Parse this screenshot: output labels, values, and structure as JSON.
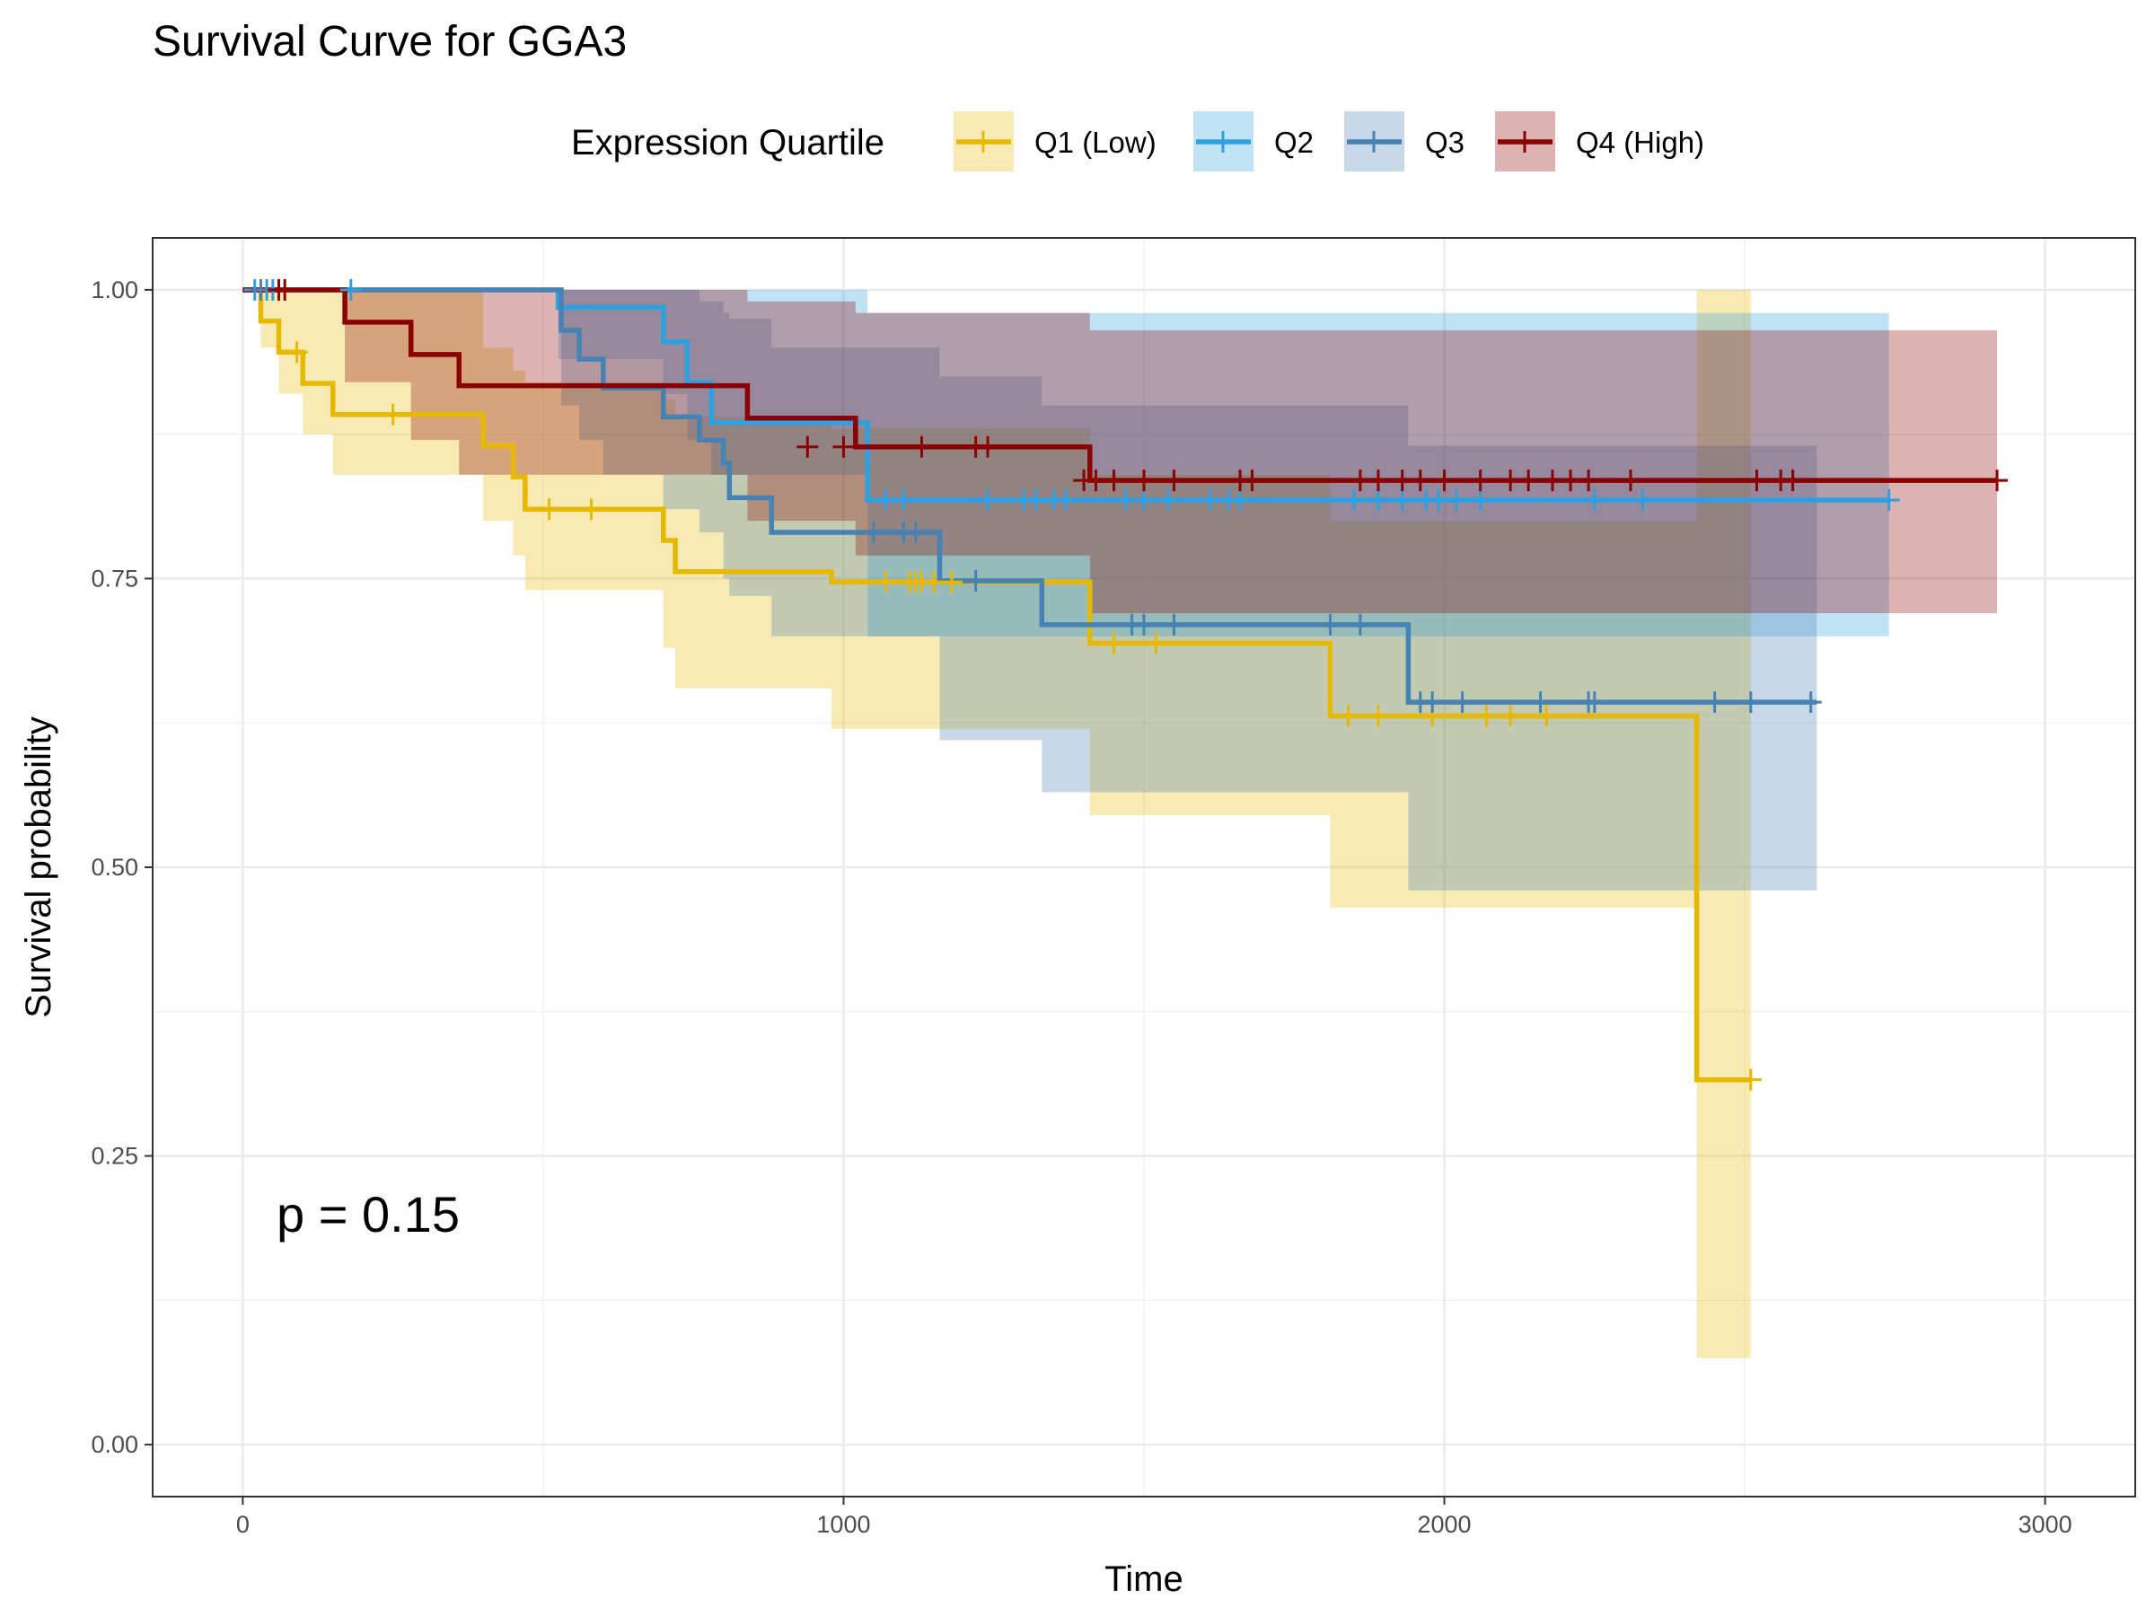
{
  "chart_data": {
    "type": "line",
    "title": "Survival Curve for GGA3",
    "xlabel": "Time",
    "ylabel": "Survival probability",
    "xlim": [
      -150,
      3150
    ],
    "ylim": [
      -0.045,
      1.045
    ],
    "xticks": [
      0,
      1000,
      2000,
      3000
    ],
    "xtick_labels": [
      "0",
      "1000",
      "2000",
      "3000"
    ],
    "yticks": [
      0,
      0.25,
      0.5,
      0.75,
      1
    ],
    "ytick_labels": [
      "0.00",
      "0.25",
      "0.50",
      "0.75",
      "1.00"
    ],
    "grid": true,
    "legend": {
      "title": "Expression Quartile",
      "position": "top"
    },
    "annotation": "p = 0.15",
    "series": [
      {
        "name": "Q1 (Low)",
        "color": "#E7B800",
        "steps": [
          [
            0,
            1.0
          ],
          [
            30,
            0.973
          ],
          [
            60,
            0.946
          ],
          [
            100,
            0.919
          ],
          [
            150,
            0.892
          ],
          [
            400,
            0.865
          ],
          [
            450,
            0.838
          ],
          [
            470,
            0.81
          ],
          [
            700,
            0.783
          ],
          [
            720,
            0.756
          ],
          [
            980,
            0.747
          ],
          [
            1410,
            0.694
          ],
          [
            1810,
            0.631
          ],
          [
            2420,
            0.316
          ],
          [
            2510,
            0.316
          ]
        ],
        "lower": [
          [
            0,
            1.0
          ],
          [
            30,
            0.95
          ],
          [
            60,
            0.91
          ],
          [
            100,
            0.875
          ],
          [
            150,
            0.84
          ],
          [
            400,
            0.8
          ],
          [
            450,
            0.77
          ],
          [
            470,
            0.74
          ],
          [
            700,
            0.69
          ],
          [
            720,
            0.655
          ],
          [
            980,
            0.62
          ],
          [
            1410,
            0.545
          ],
          [
            1810,
            0.465
          ],
          [
            2420,
            0.075
          ],
          [
            2510,
            0.075
          ]
        ],
        "upper": [
          [
            0,
            1.0
          ],
          [
            30,
            1.0
          ],
          [
            60,
            1.0
          ],
          [
            100,
            1.0
          ],
          [
            150,
            1.0
          ],
          [
            400,
            0.95
          ],
          [
            450,
            0.93
          ],
          [
            470,
            0.92
          ],
          [
            700,
            0.905
          ],
          [
            720,
            0.89
          ],
          [
            980,
            0.88
          ],
          [
            1410,
            0.84
          ],
          [
            1810,
            0.8
          ],
          [
            2420,
            1.0
          ],
          [
            2510,
            1.0
          ]
        ],
        "censored": [
          [
            90,
            0.946
          ],
          [
            250,
            0.892
          ],
          [
            510,
            0.81
          ],
          [
            580,
            0.81
          ],
          [
            1070,
            0.747
          ],
          [
            1110,
            0.747
          ],
          [
            1120,
            0.747
          ],
          [
            1130,
            0.747
          ],
          [
            1150,
            0.747
          ],
          [
            1180,
            0.747
          ],
          [
            1450,
            0.694
          ],
          [
            1520,
            0.694
          ],
          [
            1840,
            0.631
          ],
          [
            1890,
            0.631
          ],
          [
            1980,
            0.631
          ],
          [
            2070,
            0.631
          ],
          [
            2110,
            0.631
          ],
          [
            2170,
            0.631
          ],
          [
            2510,
            0.316
          ]
        ]
      },
      {
        "name": "Q2",
        "color": "#2E9FDF",
        "steps": [
          [
            0,
            1.0
          ],
          [
            525,
            0.985
          ],
          [
            700,
            0.955
          ],
          [
            740,
            0.92
          ],
          [
            780,
            0.885
          ],
          [
            1040,
            0.818
          ],
          [
            2740,
            0.818
          ]
        ],
        "lower": [
          [
            0,
            1.0
          ],
          [
            525,
            0.94
          ],
          [
            700,
            0.91
          ],
          [
            740,
            0.87
          ],
          [
            780,
            0.84
          ],
          [
            1040,
            0.7
          ],
          [
            2740,
            0.7
          ]
        ],
        "upper": [
          [
            0,
            1.0
          ],
          [
            525,
            1.0
          ],
          [
            700,
            1.0
          ],
          [
            740,
            1.0
          ],
          [
            780,
            1.0
          ],
          [
            1040,
            0.98
          ],
          [
            2740,
            0.96
          ]
        ],
        "censored": [
          [
            20,
            1.0
          ],
          [
            40,
            1.0
          ],
          [
            50,
            1.0
          ],
          [
            180,
            1.0
          ],
          [
            1070,
            0.818
          ],
          [
            1100,
            0.818
          ],
          [
            1240,
            0.818
          ],
          [
            1300,
            0.818
          ],
          [
            1320,
            0.818
          ],
          [
            1350,
            0.818
          ],
          [
            1370,
            0.818
          ],
          [
            1470,
            0.818
          ],
          [
            1500,
            0.818
          ],
          [
            1540,
            0.818
          ],
          [
            1610,
            0.818
          ],
          [
            1640,
            0.818
          ],
          [
            1660,
            0.818
          ],
          [
            1850,
            0.818
          ],
          [
            1890,
            0.818
          ],
          [
            1930,
            0.818
          ],
          [
            1970,
            0.818
          ],
          [
            1990,
            0.818
          ],
          [
            2020,
            0.818
          ],
          [
            2060,
            0.818
          ],
          [
            2250,
            0.818
          ],
          [
            2330,
            0.818
          ],
          [
            2740,
            0.818
          ]
        ]
      },
      {
        "name": "Q3",
        "color": "#4682B4",
        "steps": [
          [
            0,
            1.0
          ],
          [
            530,
            0.965
          ],
          [
            560,
            0.94
          ],
          [
            600,
            0.915
          ],
          [
            700,
            0.89
          ],
          [
            760,
            0.87
          ],
          [
            800,
            0.85
          ],
          [
            810,
            0.82
          ],
          [
            880,
            0.79
          ],
          [
            1160,
            0.748
          ],
          [
            1330,
            0.71
          ],
          [
            1940,
            0.643
          ],
          [
            2620,
            0.643
          ]
        ],
        "lower": [
          [
            0,
            1.0
          ],
          [
            530,
            0.9
          ],
          [
            560,
            0.87
          ],
          [
            600,
            0.84
          ],
          [
            700,
            0.81
          ],
          [
            760,
            0.79
          ],
          [
            800,
            0.75
          ],
          [
            810,
            0.735
          ],
          [
            880,
            0.7
          ],
          [
            1160,
            0.61
          ],
          [
            1330,
            0.565
          ],
          [
            1940,
            0.48
          ],
          [
            2620,
            0.48
          ]
        ],
        "upper": [
          [
            0,
            1.0
          ],
          [
            530,
            1.0
          ],
          [
            560,
            1.0
          ],
          [
            600,
            1.0
          ],
          [
            700,
            1.0
          ],
          [
            760,
            0.99
          ],
          [
            800,
            0.98
          ],
          [
            810,
            0.975
          ],
          [
            880,
            0.95
          ],
          [
            1160,
            0.925
          ],
          [
            1330,
            0.9
          ],
          [
            1940,
            0.865
          ],
          [
            2620,
            0.865
          ]
        ],
        "censored": [
          [
            30,
            1.0
          ],
          [
            1050,
            0.79
          ],
          [
            1100,
            0.79
          ],
          [
            1120,
            0.79
          ],
          [
            1220,
            0.748
          ],
          [
            1480,
            0.71
          ],
          [
            1500,
            0.71
          ],
          [
            1550,
            0.71
          ],
          [
            1810,
            0.71
          ],
          [
            1860,
            0.71
          ],
          [
            1960,
            0.643
          ],
          [
            1980,
            0.643
          ],
          [
            2030,
            0.643
          ],
          [
            2160,
            0.643
          ],
          [
            2240,
            0.643
          ],
          [
            2250,
            0.643
          ],
          [
            2450,
            0.643
          ],
          [
            2510,
            0.643
          ],
          [
            2610,
            0.643
          ]
        ]
      },
      {
        "name": "Q4 (High)",
        "color": "#8B0000",
        "steps": [
          [
            0,
            1.0
          ],
          [
            170,
            0.972
          ],
          [
            280,
            0.944
          ],
          [
            360,
            0.917
          ],
          [
            840,
            0.889
          ],
          [
            1020,
            0.864
          ],
          [
            1410,
            0.835
          ],
          [
            2920,
            0.835
          ]
        ],
        "lower": [
          [
            0,
            1.0
          ],
          [
            170,
            0.92
          ],
          [
            280,
            0.87
          ],
          [
            360,
            0.84
          ],
          [
            840,
            0.8
          ],
          [
            1020,
            0.77
          ],
          [
            1410,
            0.72
          ],
          [
            2920,
            0.72
          ]
        ],
        "upper": [
          [
            0,
            1.0
          ],
          [
            170,
            1.0
          ],
          [
            280,
            1.0
          ],
          [
            360,
            1.0
          ],
          [
            840,
            0.99
          ],
          [
            1020,
            0.98
          ],
          [
            1410,
            0.965
          ],
          [
            2920,
            0.965
          ]
        ],
        "censored": [
          [
            60,
            1.0
          ],
          [
            70,
            1.0
          ],
          [
            940,
            0.864
          ],
          [
            1000,
            0.864
          ],
          [
            1130,
            0.864
          ],
          [
            1220,
            0.864
          ],
          [
            1240,
            0.864
          ],
          [
            1400,
            0.835
          ],
          [
            1420,
            0.835
          ],
          [
            1450,
            0.835
          ],
          [
            1500,
            0.835
          ],
          [
            1550,
            0.835
          ],
          [
            1660,
            0.835
          ],
          [
            1680,
            0.835
          ],
          [
            1860,
            0.835
          ],
          [
            1890,
            0.835
          ],
          [
            1930,
            0.835
          ],
          [
            1960,
            0.835
          ],
          [
            2000,
            0.835
          ],
          [
            2060,
            0.835
          ],
          [
            2110,
            0.835
          ],
          [
            2140,
            0.835
          ],
          [
            2180,
            0.835
          ],
          [
            2210,
            0.835
          ],
          [
            2240,
            0.835
          ],
          [
            2310,
            0.835
          ],
          [
            2520,
            0.835
          ],
          [
            2560,
            0.835
          ],
          [
            2580,
            0.835
          ],
          [
            2920,
            0.835
          ]
        ]
      }
    ]
  }
}
